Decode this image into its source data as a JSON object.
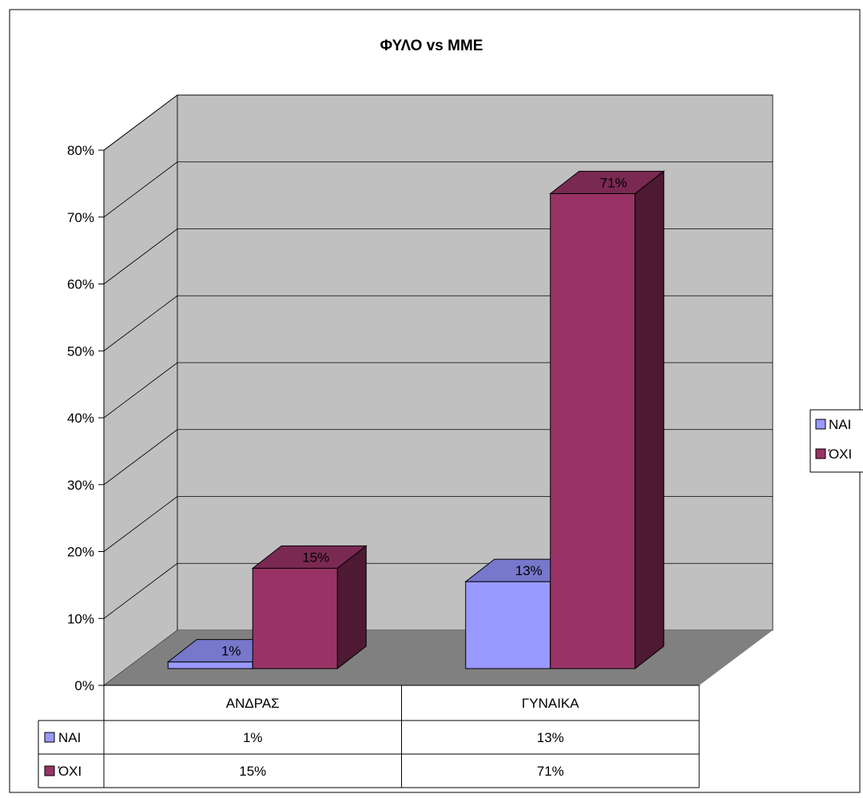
{
  "chart_data": {
    "type": "bar",
    "title": "ΦΥΛΟ vs MME",
    "categories": [
      "ΑΝΔΡΑΣ",
      "ΓΥΝΑΙΚΑ"
    ],
    "series": [
      {
        "name": "ΝΑΙ",
        "values": [
          1,
          13
        ],
        "labels": [
          "1%",
          "13%"
        ],
        "color": "#9999FF",
        "top_color": "#7777CC",
        "side_color": "#4C4C80"
      },
      {
        "name": "ΌΧΙ",
        "values": [
          15,
          71
        ],
        "labels": [
          "15%",
          "71%"
        ],
        "color": "#993366",
        "top_color": "#7A2952",
        "side_color": "#4D1933"
      }
    ],
    "ylim": [
      0,
      80
    ],
    "yticks": [
      "0%",
      "10%",
      "20%",
      "30%",
      "40%",
      "50%",
      "60%",
      "70%",
      "80%"
    ],
    "xlabel": "",
    "ylabel": "",
    "grid": true,
    "legend": "right",
    "data_table": true,
    "colors": {
      "wall": "#C0C0C0",
      "floor": "#808080"
    }
  }
}
